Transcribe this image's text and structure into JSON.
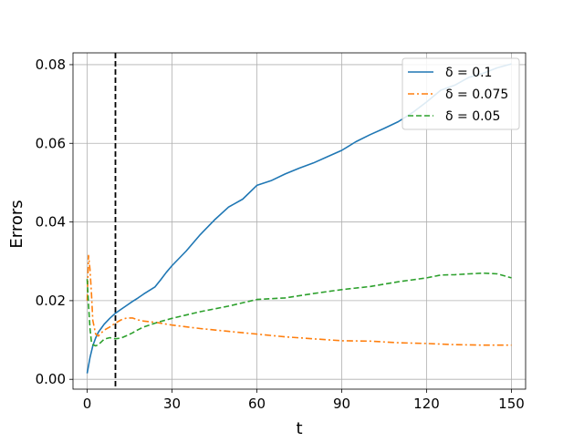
{
  "chart_data": {
    "type": "line",
    "title": "",
    "xlabel": "t",
    "ylabel": "Errors",
    "xlim": [
      -5,
      155
    ],
    "ylim": [
      -0.0025,
      0.083
    ],
    "xticks": [
      0,
      30,
      60,
      90,
      120,
      150
    ],
    "xtick_labels": [
      "0",
      "30",
      "60",
      "90",
      "120",
      "150"
    ],
    "yticks": [
      0.0,
      0.02,
      0.04,
      0.06,
      0.08
    ],
    "ytick_labels": [
      "0.00",
      "0.02",
      "0.04",
      "0.06",
      "0.08"
    ],
    "grid": true,
    "legend_position": "top-right",
    "vline": {
      "x": 10,
      "style": "dashed",
      "color": "#000000"
    },
    "series": [
      {
        "name": "δ = 0.1",
        "color": "#1f77b4",
        "style": "solid",
        "x": [
          0,
          1,
          2,
          3,
          4,
          5,
          6,
          8,
          10,
          12,
          14,
          16,
          18,
          20,
          22,
          24,
          26,
          28,
          30,
          35,
          40,
          45,
          50,
          55,
          60,
          65,
          70,
          75,
          80,
          85,
          90,
          95,
          100,
          105,
          110,
          115,
          120,
          125,
          130,
          135,
          140,
          145,
          150
        ],
        "y": [
          0.0015,
          0.0055,
          0.0085,
          0.0105,
          0.012,
          0.013,
          0.014,
          0.0155,
          0.0168,
          0.0178,
          0.0188,
          0.0198,
          0.0207,
          0.0217,
          0.0226,
          0.0235,
          0.0253,
          0.0272,
          0.0289,
          0.0326,
          0.0368,
          0.0405,
          0.0438,
          0.0458,
          0.0493,
          0.0505,
          0.0522,
          0.0537,
          0.055,
          0.0566,
          0.0582,
          0.0604,
          0.0622,
          0.0638,
          0.0655,
          0.0678,
          0.0705,
          0.0735,
          0.0748,
          0.0768,
          0.0778,
          0.0792,
          0.0802
        ]
      },
      {
        "name": "δ = 0.075",
        "color": "#ff7f0e",
        "style": "dashdot",
        "x": [
          0,
          0.5,
          1,
          1.5,
          2,
          3,
          4,
          5,
          6,
          8,
          10,
          12,
          14,
          16,
          18,
          20,
          25,
          30,
          40,
          50,
          60,
          70,
          80,
          90,
          100,
          110,
          120,
          130,
          140,
          150
        ],
        "y": [
          0.02,
          0.0315,
          0.028,
          0.022,
          0.015,
          0.0115,
          0.011,
          0.0118,
          0.0125,
          0.0133,
          0.0143,
          0.0151,
          0.0156,
          0.0156,
          0.0151,
          0.0148,
          0.0144,
          0.0138,
          0.0129,
          0.0122,
          0.0115,
          0.0108,
          0.0103,
          0.0098,
          0.0097,
          0.0093,
          0.0091,
          0.0088,
          0.0087,
          0.0087
        ]
      },
      {
        "name": "δ = 0.05",
        "color": "#2ca02c",
        "style": "dashed",
        "x": [
          0,
          0.5,
          1,
          1.5,
          2,
          3,
          4,
          5,
          6,
          8,
          10,
          12,
          14,
          16,
          18,
          20,
          25,
          30,
          40,
          50,
          60,
          70,
          80,
          90,
          100,
          110,
          120,
          125,
          130,
          135,
          140,
          145,
          150
        ],
        "y": [
          0.0255,
          0.019,
          0.013,
          0.0095,
          0.0088,
          0.0085,
          0.0088,
          0.0095,
          0.0102,
          0.0106,
          0.0103,
          0.0105,
          0.0111,
          0.0118,
          0.0126,
          0.0133,
          0.0145,
          0.0155,
          0.0172,
          0.0186,
          0.0203,
          0.0207,
          0.0218,
          0.0228,
          0.0236,
          0.0248,
          0.0258,
          0.0265,
          0.0266,
          0.0268,
          0.027,
          0.0268,
          0.0258
        ]
      }
    ]
  }
}
